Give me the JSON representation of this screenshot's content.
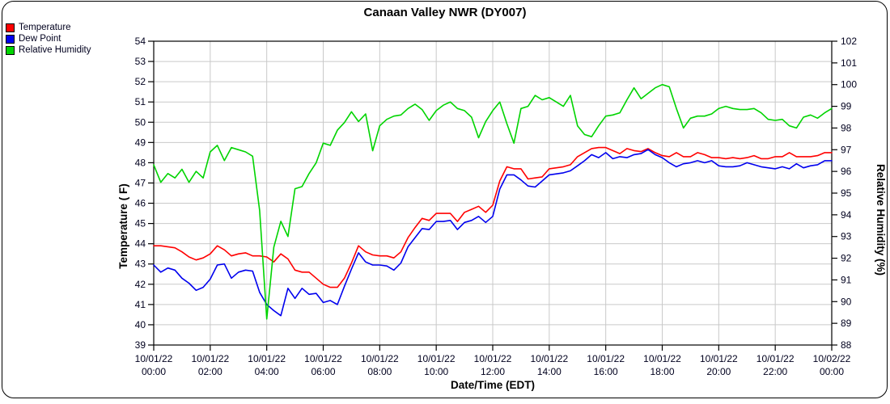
{
  "chart_data": {
    "type": "line",
    "title": "Canaan Valley NWR (DY007)",
    "xlabel": "Date/Time (EDT)",
    "ylabel_left": "Temperature ( F)",
    "ylabel_right": "Relative Humidity (%)",
    "grid": true,
    "legend_position": "top-left",
    "x_unit": "hours since 10/01/22 00:00 EDT",
    "x_range": [
      0,
      24
    ],
    "sample_interval_minutes": 15,
    "x_ticks": [
      {
        "date": "10/01/22",
        "time": "00:00"
      },
      {
        "date": "10/01/22",
        "time": "02:00"
      },
      {
        "date": "10/01/22",
        "time": "04:00"
      },
      {
        "date": "10/01/22",
        "time": "06:00"
      },
      {
        "date": "10/01/22",
        "time": "08:00"
      },
      {
        "date": "10/01/22",
        "time": "10:00"
      },
      {
        "date": "10/01/22",
        "time": "12:00"
      },
      {
        "date": "10/01/22",
        "time": "14:00"
      },
      {
        "date": "10/01/22",
        "time": "16:00"
      },
      {
        "date": "10/01/22",
        "time": "18:00"
      },
      {
        "date": "10/01/22",
        "time": "20:00"
      },
      {
        "date": "10/01/22",
        "time": "22:00"
      },
      {
        "date": "10/02/22",
        "time": "00:00"
      }
    ],
    "y_left_axis": {
      "min": 39,
      "max": 54,
      "tick_step": 1
    },
    "y_right_axis": {
      "min": 88,
      "max": 102,
      "tick_step": 1
    },
    "series": [
      {
        "name": "Temperature",
        "axis": "left",
        "color": "#ff0000",
        "values": [
          43.9,
          43.9,
          43.85,
          43.8,
          43.6,
          43.35,
          43.2,
          43.3,
          43.5,
          43.9,
          43.7,
          43.4,
          43.5,
          43.55,
          43.4,
          43.4,
          43.35,
          43.1,
          43.5,
          43.25,
          42.7,
          42.6,
          42.6,
          42.3,
          42.0,
          41.85,
          41.85,
          42.3,
          43.05,
          43.9,
          43.6,
          43.45,
          43.4,
          43.4,
          43.3,
          43.6,
          44.3,
          44.8,
          45.25,
          45.15,
          45.5,
          45.5,
          45.5,
          45.1,
          45.55,
          45.7,
          45.85,
          45.55,
          45.9,
          47.1,
          47.8,
          47.7,
          47.7,
          47.2,
          47.25,
          47.3,
          47.7,
          47.75,
          47.8,
          47.9,
          48.3,
          48.5,
          48.7,
          48.75,
          48.75,
          48.6,
          48.45,
          48.7,
          48.6,
          48.55,
          48.7,
          48.5,
          48.35,
          48.3,
          48.5,
          48.3,
          48.3,
          48.5,
          48.4,
          48.25,
          48.25,
          48.2,
          48.25,
          48.2,
          48.25,
          48.35,
          48.2,
          48.2,
          48.3,
          48.3,
          48.5,
          48.3,
          48.3,
          48.3,
          48.35,
          48.5,
          48.5
        ]
      },
      {
        "name": "Dew Point",
        "axis": "left",
        "color": "#0000ee",
        "values": [
          42.95,
          42.6,
          42.8,
          42.7,
          42.3,
          42.05,
          41.7,
          41.85,
          42.25,
          42.95,
          43.0,
          42.3,
          42.6,
          42.7,
          42.65,
          41.6,
          41.0,
          40.7,
          40.45,
          41.8,
          41.3,
          41.8,
          41.5,
          41.55,
          41.1,
          41.2,
          41.0,
          41.9,
          42.75,
          43.55,
          43.1,
          42.95,
          42.95,
          42.9,
          42.7,
          43.05,
          43.85,
          44.3,
          44.75,
          44.7,
          45.1,
          45.1,
          45.15,
          44.7,
          45.05,
          45.15,
          45.35,
          45.05,
          45.35,
          46.7,
          47.4,
          47.4,
          47.15,
          46.85,
          46.8,
          47.1,
          47.4,
          47.45,
          47.5,
          47.6,
          47.85,
          48.1,
          48.4,
          48.25,
          48.5,
          48.2,
          48.3,
          48.25,
          48.4,
          48.45,
          48.65,
          48.4,
          48.25,
          48.0,
          47.8,
          47.95,
          48.0,
          48.1,
          48.0,
          48.1,
          47.85,
          47.8,
          47.8,
          47.85,
          48.0,
          47.9,
          47.8,
          47.75,
          47.7,
          47.8,
          47.7,
          47.95,
          47.75,
          47.85,
          47.9,
          48.1,
          48.1
        ]
      },
      {
        "name": "Relative Humidity",
        "axis": "right",
        "color": "#00d400",
        "values": [
          96.3,
          95.5,
          95.9,
          95.7,
          96.1,
          95.5,
          96.0,
          95.7,
          96.9,
          97.2,
          96.5,
          97.1,
          97.0,
          96.9,
          96.7,
          94.2,
          89.2,
          92.5,
          93.7,
          93.0,
          95.2,
          95.3,
          95.9,
          96.4,
          97.3,
          97.2,
          97.9,
          98.25,
          98.75,
          98.3,
          98.65,
          96.95,
          98.1,
          98.4,
          98.55,
          98.6,
          98.9,
          99.1,
          98.85,
          98.35,
          98.8,
          99.05,
          99.2,
          98.9,
          98.8,
          98.5,
          97.55,
          98.3,
          98.8,
          99.2,
          98.2,
          97.3,
          98.9,
          99.0,
          99.5,
          99.3,
          99.4,
          99.2,
          99.0,
          99.5,
          98.1,
          97.7,
          97.6,
          98.1,
          98.55,
          98.6,
          98.7,
          99.3,
          99.85,
          99.35,
          99.6,
          99.85,
          100.0,
          99.9,
          98.9,
          98.0,
          98.45,
          98.55,
          98.55,
          98.65,
          98.9,
          99.0,
          98.9,
          98.85,
          98.85,
          98.9,
          98.7,
          98.4,
          98.35,
          98.4,
          98.1,
          98.0,
          98.5,
          98.6,
          98.45,
          98.7,
          98.9
        ]
      }
    ]
  }
}
